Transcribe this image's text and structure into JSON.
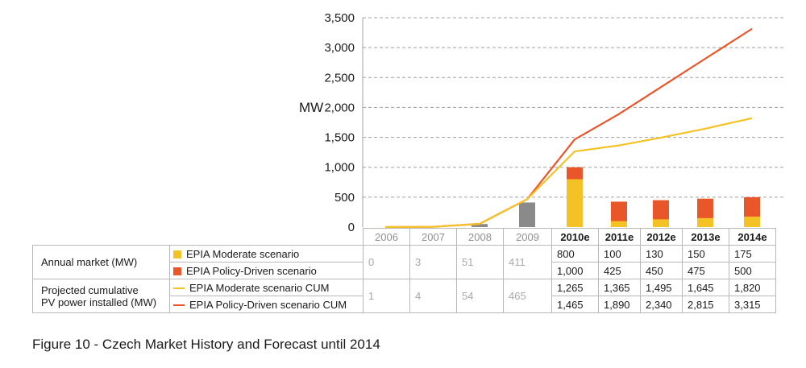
{
  "colors": {
    "moderate": "#f5c225",
    "policy": "#e8562a",
    "historic_bar": "#8a8a8a",
    "hist_line": "#f0b400",
    "grid": "#a0a0a0"
  },
  "caption": "Figure 10 - Czech Market History and Forecast until 2014",
  "chart_data": {
    "type": "bar",
    "categories": [
      "2006",
      "2007",
      "2008",
      "2009",
      "2010e",
      "2011e",
      "2012e",
      "2013e",
      "2014e"
    ],
    "ylabel": "MW",
    "ylim": [
      0,
      3500
    ],
    "yticks": [
      "0",
      "500",
      "1,000",
      "1,500",
      "2,000",
      "2,500",
      "3,000",
      "3,500"
    ],
    "ytick_values": [
      0,
      500,
      1000,
      1500,
      2000,
      2500,
      3000,
      3500
    ],
    "grid": "horizontal dashed",
    "annual_historic": [
      0,
      3,
      51,
      411,
      null,
      null,
      null,
      null,
      null
    ],
    "series": [
      {
        "name": "EPIA Moderate scenario",
        "kind": "bar",
        "values": [
          null,
          null,
          null,
          null,
          800,
          100,
          130,
          150,
          175
        ]
      },
      {
        "name": "EPIA Policy-Driven scenario",
        "kind": "bar",
        "values": [
          null,
          null,
          null,
          null,
          1000,
          425,
          450,
          475,
          500
        ]
      },
      {
        "name": "EPIA Moderate scenario CUM",
        "kind": "line",
        "values": [
          1,
          4,
          54,
          465,
          1265,
          1365,
          1495,
          1645,
          1820
        ]
      },
      {
        "name": "EPIA Policy-Driven scenario CUM",
        "kind": "line",
        "values": [
          1,
          4,
          54,
          465,
          1465,
          1890,
          2340,
          2815,
          3315
        ]
      }
    ]
  },
  "table": {
    "annual_label": "Annual market (MW)",
    "cumulative_label_1": "Projected cumulative",
    "cumulative_label_2": "PV power installed (MW)",
    "legend_moderate": "EPIA Moderate scenario",
    "legend_policy": "EPIA Policy-Driven scenario",
    "legend_moderate_cum": "EPIA Moderate scenario CUM",
    "legend_policy_cum": "EPIA Policy-Driven scenario CUM",
    "years": [
      "2006",
      "2007",
      "2008",
      "2009",
      "2010e",
      "2011e",
      "2012e",
      "2013e",
      "2014e"
    ],
    "annual_hist": [
      "0",
      "3",
      "51",
      "411"
    ],
    "annual_moderate": [
      "800",
      "100",
      "130",
      "150",
      "175"
    ],
    "annual_policy": [
      "1,000",
      "425",
      "450",
      "475",
      "500"
    ],
    "cum_hist": [
      "1",
      "4",
      "54",
      "465"
    ],
    "cum_moderate": [
      "1,265",
      "1,365",
      "1,495",
      "1,645",
      "1,820"
    ],
    "cum_policy": [
      "1,465",
      "1,890",
      "2,340",
      "2,815",
      "3,315"
    ]
  }
}
